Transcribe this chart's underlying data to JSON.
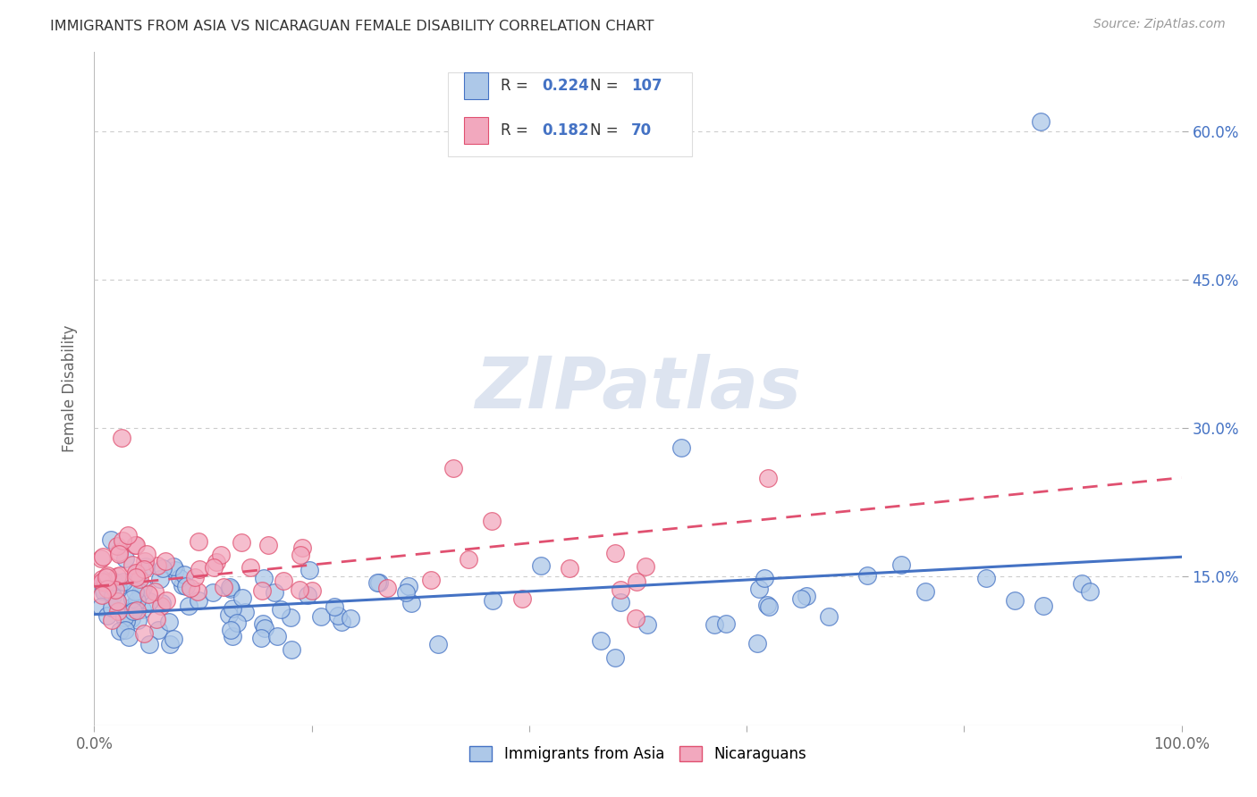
{
  "title": "IMMIGRANTS FROM ASIA VS NICARAGUAN FEMALE DISABILITY CORRELATION CHART",
  "source": "Source: ZipAtlas.com",
  "ylabel": "Female Disability",
  "y_ticks": [
    0.15,
    0.3,
    0.45,
    0.6
  ],
  "y_tick_labels": [
    "15.0%",
    "30.0%",
    "45.0%",
    "60.0%"
  ],
  "legend_r1": "R = ",
  "legend_v1": "0.224",
  "legend_n1_label": "N = ",
  "legend_n1": "107",
  "legend_r2": "R = ",
  "legend_v2": "0.182",
  "legend_n2_label": "N = ",
  "legend_n2": "70",
  "series1_color": "#adc8e8",
  "series2_color": "#f2a8be",
  "line1_color": "#4472C4",
  "line2_color": "#E05070",
  "watermark_color": "#dde4f0",
  "background_color": "#ffffff",
  "grid_color": "#cccccc",
  "title_color": "#333333",
  "right_axis_color": "#4472C4",
  "text_dark": "#333333",
  "asia_line_y0": 0.112,
  "asia_line_y1": 0.17,
  "nica_line_y0": 0.14,
  "nica_line_y1": 0.25,
  "xlim": [
    0,
    1
  ],
  "ylim": [
    0,
    0.68
  ]
}
